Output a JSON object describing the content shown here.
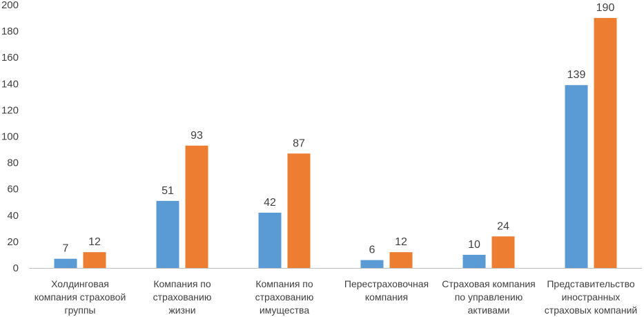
{
  "chart_data": {
    "type": "bar",
    "title": "",
    "xlabel": "",
    "ylabel": "",
    "ylim": [
      0,
      200
    ],
    "yticks": [
      0,
      20,
      40,
      60,
      80,
      100,
      120,
      140,
      160,
      180,
      200
    ],
    "grid": false,
    "legend": "none",
    "categories": [
      [
        "Холдинговая",
        "компания страховой",
        "группы"
      ],
      [
        "Компания по",
        "страхованию",
        "жизни"
      ],
      [
        "Компания по",
        "страхованию",
        "имущества"
      ],
      [
        "Перестраховочная",
        "компания"
      ],
      [
        "Страховая компания",
        "по управлению",
        "активами"
      ],
      [
        "Представительство",
        "иностранных",
        "страховых компаний"
      ]
    ],
    "series": [
      {
        "name": "Series 1",
        "color": "#5b9bd5",
        "values": [
          7,
          51,
          42,
          6,
          10,
          139
        ]
      },
      {
        "name": "Series 2",
        "color": "#ed7d31",
        "values": [
          12,
          93,
          87,
          12,
          24,
          190
        ]
      }
    ]
  }
}
